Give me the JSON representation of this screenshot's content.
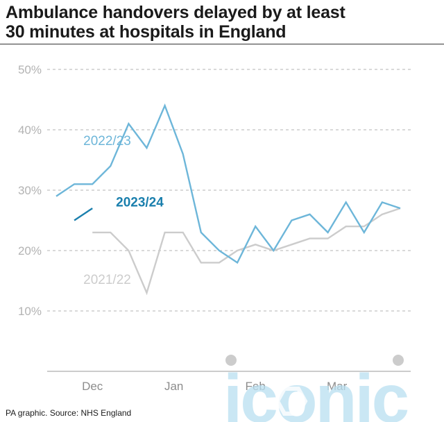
{
  "title_line1": "Ambulance handovers delayed by at least",
  "title_line2": "30 minutes at hospitals in England",
  "source": "PA graphic. Source: NHS England",
  "watermark_text": "iconic",
  "colors": {
    "s2022": "#6db6d9",
    "s2023": "#1a7fad",
    "s2021": "#cccccc",
    "grid": "#b3b3b3",
    "axis_text": "#b3b3b3",
    "month_text": "#8c8c8c",
    "watermark": "#b8dff0"
  },
  "chart_data": {
    "type": "line",
    "title": "Ambulance handovers delayed by at least 30 minutes at hospitals in England",
    "ylabel": "",
    "xlabel": "",
    "ylim": [
      0,
      50
    ],
    "yticks": [
      10,
      20,
      30,
      40,
      50
    ],
    "ytick_labels": [
      "10%",
      "20%",
      "30%",
      "40%",
      "50%"
    ],
    "x_range": [
      0,
      19
    ],
    "month_labels": [
      {
        "label": "Dec",
        "x": 2
      },
      {
        "label": "Jan",
        "x": 6.5
      },
      {
        "label": "Feb",
        "x": 11
      },
      {
        "label": "Mar",
        "x": 15.5
      }
    ],
    "series": [
      {
        "name": "2022/23",
        "color_key": "s2022",
        "label_x": 1.5,
        "label_y": 37.5,
        "x": [
          0,
          1,
          2,
          3,
          4,
          5,
          6,
          7,
          8,
          9,
          10,
          11,
          12,
          13,
          14,
          15,
          16,
          17,
          18,
          19
        ],
        "values": [
          29,
          31,
          31,
          34,
          41,
          37,
          44,
          36,
          23,
          20,
          18,
          24,
          20,
          25,
          26,
          23,
          28,
          23,
          28,
          27
        ]
      },
      {
        "name": "2021/22",
        "color_key": "s2021",
        "label_x": 1.5,
        "label_y": 14.5,
        "x": [
          2,
          3,
          4,
          5,
          6,
          7,
          8,
          9,
          10,
          11,
          12,
          13,
          14,
          15,
          16,
          17,
          18,
          19
        ],
        "values": [
          23,
          23,
          20,
          13,
          23,
          23,
          18,
          18,
          20,
          21,
          20,
          21,
          22,
          22,
          24,
          24,
          26,
          27
        ]
      },
      {
        "name": "2023/24",
        "color_key": "s2023",
        "label_x": 3.3,
        "label_y": 27.3,
        "x": [
          1,
          2
        ],
        "values": [
          25,
          27
        ]
      }
    ]
  }
}
